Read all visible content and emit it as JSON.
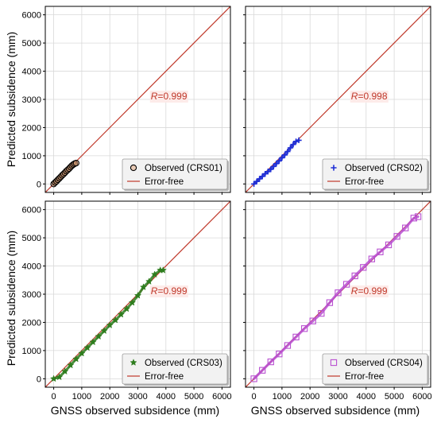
{
  "figure": {
    "ylabel": "Predicted subsidence (mm)",
    "xlabel": "GNSS observed subsidence (mm)",
    "colors": {
      "error_free": "#c0392b",
      "grid": "#d9d9d9",
      "axis": "#000000"
    }
  },
  "chart_data": [
    {
      "type": "scatter",
      "station": "CRS01",
      "xlim": [
        -300,
        6300
      ],
      "ylim": [
        -300,
        6300
      ],
      "xticks": [
        0,
        1000,
        2000,
        3000,
        4000,
        5000,
        6000
      ],
      "yticks": [
        0,
        1000,
        2000,
        3000,
        4000,
        5000,
        6000
      ],
      "show_xticklabels": false,
      "show_yticklabels": true,
      "grid": true,
      "r_label": "R=0.999",
      "legend": {
        "placement": "bottom-right",
        "observed_label": "Observed (CRS01)",
        "line_label": "Error-free"
      },
      "marker": {
        "shape": "circle-open",
        "color": "#000000",
        "fill": "#e0a37a"
      },
      "observed": {
        "x": [
          0,
          50,
          100,
          150,
          200,
          250,
          300,
          350,
          400,
          450,
          500,
          550,
          600,
          650,
          700,
          750,
          800
        ],
        "y": [
          0,
          50,
          95,
          150,
          200,
          250,
          305,
          350,
          400,
          455,
          500,
          545,
          600,
          650,
          690,
          720,
          740
        ]
      }
    },
    {
      "type": "scatter",
      "station": "CRS02",
      "xlim": [
        -300,
        6300
      ],
      "ylim": [
        -300,
        6300
      ],
      "xticks": [
        0,
        1000,
        2000,
        3000,
        4000,
        5000,
        6000
      ],
      "yticks": [
        0,
        1000,
        2000,
        3000,
        4000,
        5000,
        6000
      ],
      "show_xticklabels": false,
      "show_yticklabels": false,
      "grid": true,
      "r_label": "R=0.998",
      "legend": {
        "placement": "bottom-right",
        "observed_label": "Observed (CRS02)",
        "line_label": "Error-free"
      },
      "marker": {
        "shape": "plus",
        "color": "#1f2fd6"
      },
      "observed": {
        "x": [
          0,
          100,
          200,
          300,
          400,
          500,
          600,
          700,
          800,
          900,
          1000,
          1100,
          1200,
          1300,
          1400,
          1500,
          1600
        ],
        "y": [
          0,
          90,
          180,
          270,
          360,
          440,
          520,
          620,
          720,
          820,
          930,
          1030,
          1150,
          1280,
          1400,
          1510,
          1550
        ]
      }
    },
    {
      "type": "scatter",
      "station": "CRS03",
      "xlim": [
        -300,
        6300
      ],
      "ylim": [
        -300,
        6300
      ],
      "xticks": [
        0,
        1000,
        2000,
        3000,
        4000,
        5000,
        6000
      ],
      "yticks": [
        0,
        1000,
        2000,
        3000,
        4000,
        5000,
        6000
      ],
      "show_xticklabels": true,
      "show_yticklabels": true,
      "grid": true,
      "r_label": "R=0.999",
      "legend": {
        "placement": "bottom-right",
        "observed_label": "Observed (CRS03)",
        "line_label": "Error-free"
      },
      "marker": {
        "shape": "star",
        "color": "#2e7d1e"
      },
      "observed": {
        "x": [
          0,
          200,
          400,
          600,
          800,
          1000,
          1200,
          1400,
          1600,
          1800,
          2000,
          2200,
          2400,
          2600,
          2800,
          3000,
          3200,
          3400,
          3600,
          3800,
          3900
        ],
        "y": [
          0,
          60,
          260,
          480,
          700,
          900,
          1100,
          1300,
          1500,
          1700,
          1900,
          2080,
          2280,
          2480,
          2700,
          2950,
          3250,
          3450,
          3700,
          3850,
          3850
        ]
      }
    },
    {
      "type": "scatter",
      "station": "CRS04",
      "xlim": [
        -300,
        6300
      ],
      "ylim": [
        -300,
        6300
      ],
      "xticks": [
        0,
        1000,
        2000,
        3000,
        4000,
        5000,
        6000
      ],
      "yticks": [
        0,
        1000,
        2000,
        3000,
        4000,
        5000,
        6000
      ],
      "show_xticklabels": true,
      "show_yticklabels": false,
      "grid": true,
      "r_label": "R=0.999",
      "legend": {
        "placement": "bottom-right",
        "observed_label": "Observed (CRS04)",
        "line_label": "Error-free"
      },
      "marker": {
        "shape": "square-open",
        "color": "#b84fd1"
      },
      "observed": {
        "x": [
          0,
          300,
          600,
          900,
          1200,
          1500,
          1800,
          2100,
          2400,
          2700,
          3000,
          3300,
          3600,
          3900,
          4200,
          4500,
          4800,
          5100,
          5400,
          5700,
          5850
        ],
        "y": [
          0,
          300,
          600,
          880,
          1180,
          1480,
          1780,
          2050,
          2320,
          2700,
          3050,
          3350,
          3650,
          3950,
          4250,
          4500,
          4750,
          5050,
          5350,
          5700,
          5750
        ]
      }
    }
  ]
}
